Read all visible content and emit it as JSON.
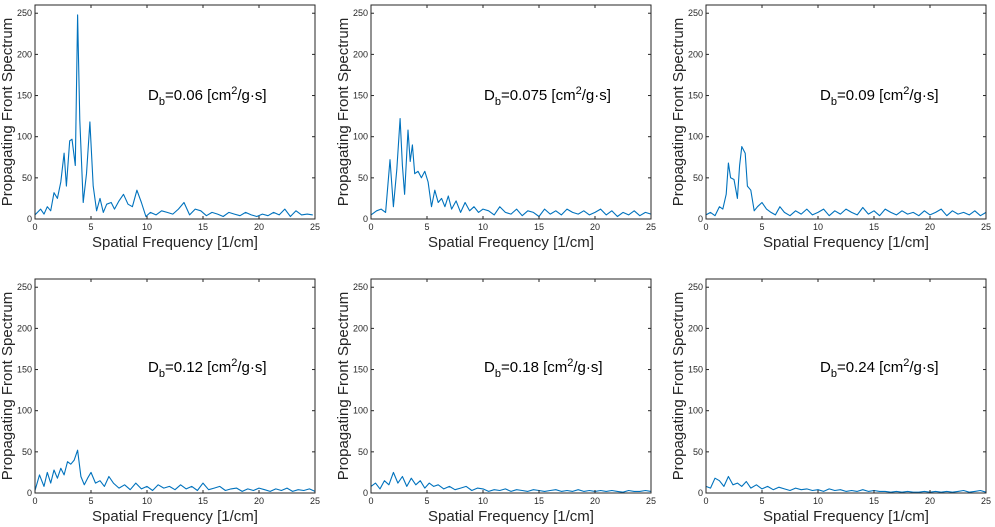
{
  "style": {
    "line_color": "#0072bd",
    "axis_color": "#262626",
    "background": "#ffffff"
  },
  "chart_data": [
    {
      "type": "line",
      "xlabel": "Spatial Frequency [1/cm]",
      "ylabel": "Propagating Front Spectrum",
      "xlim": [
        0,
        25
      ],
      "ylim": [
        0,
        260
      ],
      "xticks": [
        0,
        5,
        10,
        15,
        20,
        25
      ],
      "yticks": [
        0,
        50,
        100,
        150,
        200,
        250
      ],
      "annotation": {
        "base": "D",
        "sub": "b",
        "value": "=0.06 [cm",
        "sup": "2",
        "rest": "/g·s]"
      },
      "series": [
        {
          "x": [
            0.0,
            0.5,
            0.8,
            1.1,
            1.4,
            1.7,
            2.0,
            2.3,
            2.6,
            2.8,
            3.1,
            3.3,
            3.6,
            3.8,
            4.0,
            4.3,
            4.6,
            4.9,
            5.2,
            5.5,
            5.8,
            6.1,
            6.4,
            6.8,
            7.1,
            7.5,
            7.9,
            8.3,
            8.7,
            9.1,
            9.5,
            9.9,
            10.3,
            10.8,
            11.3,
            11.8,
            12.3,
            12.8,
            13.3,
            13.8,
            14.3,
            14.8,
            15.3,
            15.8,
            16.3,
            16.8,
            17.3,
            17.8,
            18.3,
            18.8,
            19.3,
            19.8,
            20.3,
            20.8,
            21.3,
            21.8,
            22.3,
            22.8,
            23.3,
            23.8,
            24.3,
            24.8
          ],
          "y": [
            5,
            12,
            6,
            15,
            10,
            32,
            25,
            45,
            80,
            40,
            95,
            97,
            65,
            248,
            120,
            20,
            55,
            118,
            40,
            10,
            25,
            8,
            18,
            20,
            12,
            22,
            30,
            18,
            15,
            35,
            20,
            3,
            8,
            5,
            10,
            8,
            6,
            12,
            20,
            5,
            12,
            10,
            4,
            8,
            6,
            3,
            8,
            6,
            4,
            8,
            5,
            3,
            6,
            4,
            8,
            5,
            12,
            3,
            10,
            5,
            6,
            5
          ]
        }
      ]
    },
    {
      "type": "line",
      "xlabel": "Spatial Frequency [1/cm]",
      "ylabel": "Propagating Front Spectrum",
      "xlim": [
        0,
        25
      ],
      "ylim": [
        0,
        260
      ],
      "xticks": [
        0,
        5,
        10,
        15,
        20,
        25
      ],
      "yticks": [
        0,
        50,
        100,
        150,
        200,
        250
      ],
      "annotation": {
        "base": "D",
        "sub": "b",
        "value": "=0.075 [cm",
        "sup": "2",
        "rest": "/g·s]"
      },
      "series": [
        {
          "x": [
            0.0,
            0.5,
            0.9,
            1.3,
            1.7,
            2.0,
            2.3,
            2.6,
            2.8,
            3.0,
            3.3,
            3.5,
            3.7,
            3.9,
            4.2,
            4.5,
            4.8,
            5.1,
            5.4,
            5.7,
            6.0,
            6.3,
            6.6,
            6.9,
            7.2,
            7.6,
            8.0,
            8.4,
            8.8,
            9.2,
            9.6,
            10.0,
            10.5,
            11.0,
            11.5,
            12.0,
            12.5,
            13.0,
            13.5,
            14.0,
            14.5,
            15.0,
            15.5,
            16.0,
            16.5,
            17.0,
            17.5,
            18.0,
            18.5,
            19.0,
            19.5,
            20.0,
            20.5,
            21.0,
            21.5,
            22.0,
            22.5,
            23.0,
            23.5,
            24.0,
            24.5,
            25.0
          ],
          "y": [
            5,
            10,
            12,
            8,
            72,
            15,
            60,
            122,
            65,
            30,
            108,
            70,
            90,
            55,
            58,
            50,
            58,
            45,
            15,
            35,
            20,
            25,
            15,
            28,
            12,
            22,
            8,
            20,
            10,
            15,
            8,
            12,
            10,
            5,
            15,
            8,
            6,
            12,
            4,
            10,
            8,
            3,
            12,
            6,
            10,
            5,
            12,
            8,
            6,
            10,
            5,
            8,
            12,
            5,
            10,
            3,
            8,
            5,
            10,
            4,
            8,
            6
          ]
        }
      ]
    },
    {
      "type": "line",
      "xlabel": "Spatial Frequency [1/cm]",
      "ylabel": "Propagating Front Spectrum",
      "xlim": [
        0,
        25
      ],
      "ylim": [
        0,
        260
      ],
      "xticks": [
        0,
        5,
        10,
        15,
        20,
        25
      ],
      "yticks": [
        0,
        50,
        100,
        150,
        200,
        250
      ],
      "annotation": {
        "base": "D",
        "sub": "b",
        "value": "=0.09 [cm",
        "sup": "2",
        "rest": "/g·s]"
      },
      "series": [
        {
          "x": [
            0.0,
            0.4,
            0.8,
            1.2,
            1.5,
            1.8,
            2.0,
            2.2,
            2.5,
            2.8,
            3.0,
            3.2,
            3.5,
            3.7,
            4.0,
            4.3,
            4.6,
            5.0,
            5.4,
            5.8,
            6.2,
            6.6,
            7.0,
            7.5,
            8.0,
            8.5,
            9.0,
            9.5,
            10.0,
            10.5,
            11.0,
            11.5,
            12.0,
            12.5,
            13.0,
            13.5,
            14.0,
            14.5,
            15.0,
            15.5,
            16.0,
            16.5,
            17.0,
            17.5,
            18.0,
            18.5,
            19.0,
            19.5,
            20.0,
            20.5,
            21.0,
            21.5,
            22.0,
            22.5,
            23.0,
            23.5,
            24.0,
            24.5,
            25.0
          ],
          "y": [
            5,
            8,
            4,
            15,
            12,
            30,
            68,
            50,
            48,
            25,
            65,
            88,
            80,
            40,
            35,
            10,
            15,
            20,
            12,
            8,
            5,
            15,
            8,
            4,
            10,
            6,
            12,
            5,
            8,
            12,
            4,
            10,
            6,
            12,
            8,
            5,
            14,
            6,
            10,
            4,
            12,
            8,
            5,
            10,
            6,
            8,
            4,
            10,
            5,
            8,
            12,
            4,
            10,
            6,
            8,
            5,
            10,
            4,
            8
          ]
        }
      ]
    },
    {
      "type": "line",
      "xlabel": "Spatial Frequency [1/cm]",
      "ylabel": "Propagating Front Spectrum",
      "xlim": [
        0,
        25
      ],
      "ylim": [
        0,
        260
      ],
      "xticks": [
        0,
        5,
        10,
        15,
        20,
        25
      ],
      "yticks": [
        0,
        50,
        100,
        150,
        200,
        250
      ],
      "annotation": {
        "base": "D",
        "sub": "b",
        "value": "=0.12 [cm",
        "sup": "2",
        "rest": "/g·s]"
      },
      "series": [
        {
          "x": [
            0.0,
            0.4,
            0.8,
            1.1,
            1.4,
            1.7,
            2.0,
            2.3,
            2.6,
            2.9,
            3.2,
            3.5,
            3.8,
            4.1,
            4.4,
            4.7,
            5.0,
            5.4,
            5.8,
            6.2,
            6.6,
            7.0,
            7.5,
            8.0,
            8.5,
            9.0,
            9.5,
            10.0,
            10.5,
            11.0,
            11.5,
            12.0,
            12.5,
            13.0,
            13.5,
            14.0,
            14.5,
            15.0,
            15.5,
            16.0,
            16.5,
            17.0,
            17.5,
            18.0,
            18.5,
            19.0,
            19.5,
            20.0,
            20.5,
            21.0,
            21.5,
            22.0,
            22.5,
            23.0,
            23.5,
            24.0,
            24.5,
            25.0
          ],
          "y": [
            3,
            22,
            8,
            25,
            12,
            28,
            18,
            30,
            22,
            38,
            35,
            40,
            52,
            20,
            10,
            18,
            25,
            12,
            15,
            8,
            20,
            12,
            6,
            10,
            4,
            12,
            5,
            8,
            3,
            10,
            6,
            8,
            4,
            10,
            5,
            8,
            3,
            12,
            4,
            6,
            8,
            3,
            5,
            6,
            2,
            5,
            3,
            6,
            4,
            2,
            5,
            3,
            6,
            2,
            4,
            3,
            5,
            2
          ]
        }
      ]
    },
    {
      "type": "line",
      "xlabel": "Spatial Frequency [1/cm]",
      "ylabel": "Propagating Front Spectrum",
      "xlim": [
        0,
        25
      ],
      "ylim": [
        0,
        260
      ],
      "xticks": [
        0,
        5,
        10,
        15,
        20,
        25
      ],
      "yticks": [
        0,
        50,
        100,
        150,
        200,
        250
      ],
      "annotation": {
        "base": "D",
        "sub": "b",
        "value": "=0.18 [cm",
        "sup": "2",
        "rest": "/g·s]"
      },
      "series": [
        {
          "x": [
            0.0,
            0.4,
            0.8,
            1.2,
            1.6,
            2.0,
            2.4,
            2.8,
            3.2,
            3.6,
            4.0,
            4.4,
            4.8,
            5.2,
            5.6,
            6.0,
            6.5,
            7.0,
            7.5,
            8.0,
            8.5,
            9.0,
            9.5,
            10.0,
            10.5,
            11.0,
            11.5,
            12.0,
            12.5,
            13.0,
            13.5,
            14.0,
            14.5,
            15.0,
            15.5,
            16.0,
            16.5,
            17.0,
            17.5,
            18.0,
            18.5,
            19.0,
            19.5,
            20.0,
            20.5,
            21.0,
            21.5,
            22.0,
            22.5,
            23.0,
            23.5,
            24.0,
            24.5,
            25.0
          ],
          "y": [
            8,
            12,
            5,
            15,
            10,
            25,
            12,
            20,
            8,
            18,
            10,
            15,
            6,
            12,
            8,
            10,
            5,
            8,
            4,
            6,
            8,
            3,
            6,
            5,
            2,
            4,
            3,
            5,
            2,
            4,
            3,
            2,
            4,
            3,
            2,
            3,
            4,
            2,
            3,
            2,
            4,
            2,
            3,
            2,
            3,
            2,
            3,
            2,
            1,
            3,
            2,
            2,
            3,
            2
          ]
        }
      ]
    },
    {
      "type": "line",
      "xlabel": "Spatial Frequency [1/cm]",
      "ylabel": "Propagating Front Spectrum",
      "xlim": [
        0,
        25
      ],
      "ylim": [
        0,
        260
      ],
      "xticks": [
        0,
        5,
        10,
        15,
        20,
        25
      ],
      "yticks": [
        0,
        50,
        100,
        150,
        200,
        250
      ],
      "annotation": {
        "base": "D",
        "sub": "b",
        "value": "=0.24 [cm",
        "sup": "2",
        "rest": "/g·s]"
      },
      "series": [
        {
          "x": [
            0.0,
            0.4,
            0.8,
            1.2,
            1.6,
            2.0,
            2.4,
            2.8,
            3.2,
            3.6,
            4.0,
            4.5,
            5.0,
            5.5,
            6.0,
            6.5,
            7.0,
            7.5,
            8.0,
            8.5,
            9.0,
            9.5,
            10.0,
            10.5,
            11.0,
            11.5,
            12.0,
            12.5,
            13.0,
            13.5,
            14.0,
            14.5,
            15.0,
            15.5,
            16.0,
            16.5,
            17.0,
            17.5,
            18.0,
            18.5,
            19.0,
            19.5,
            20.0,
            20.5,
            21.0,
            21.5,
            22.0,
            22.5,
            23.0,
            23.5,
            24.0,
            24.5,
            25.0
          ],
          "y": [
            8,
            6,
            18,
            15,
            8,
            20,
            10,
            12,
            8,
            14,
            6,
            10,
            5,
            8,
            4,
            7,
            5,
            3,
            6,
            4,
            5,
            3,
            4,
            2,
            5,
            3,
            4,
            2,
            3,
            2,
            4,
            2,
            3,
            2,
            2,
            1,
            2,
            1,
            2,
            1,
            1,
            2,
            1,
            2,
            1,
            2,
            1,
            2,
            3,
            1,
            2,
            3,
            1
          ]
        }
      ]
    }
  ]
}
